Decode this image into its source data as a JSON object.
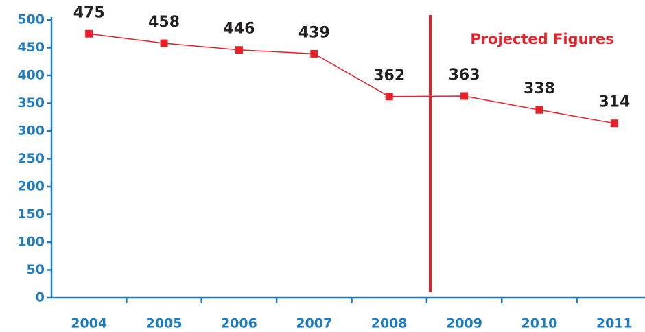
{
  "chart_data": {
    "type": "line",
    "annotation": "Projected Figures",
    "categories": [
      "2004",
      "2005",
      "2006",
      "2007",
      "2008",
      "2009",
      "2010",
      "2011"
    ],
    "values": [
      475,
      458,
      446,
      439,
      362,
      363,
      338,
      314
    ],
    "color": "#e8202a",
    "axis_color": "#1f7bbf",
    "ylim": [
      0,
      500
    ],
    "yticks": [
      0,
      50,
      100,
      150,
      200,
      250,
      300,
      350,
      400,
      450,
      500
    ],
    "grid": false
  }
}
